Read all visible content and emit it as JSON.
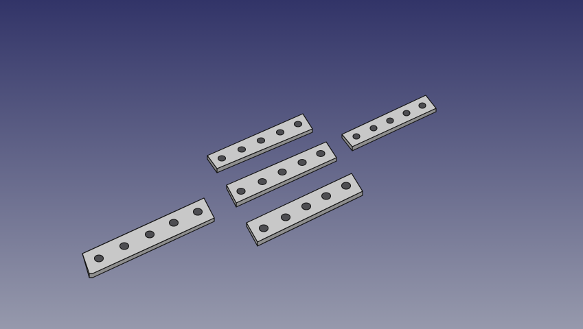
{
  "viewport": {
    "background_top_color": "#323468",
    "background_bottom_color": "#9699AC"
  },
  "materials": {
    "plate_top_color": "#C8C8C8",
    "plate_side_color": "#8E8E8E",
    "plate_edge_color": "#151515",
    "hole_color": "#4E4E52"
  },
  "parts": [
    {
      "name": "plate-large",
      "hole_count": 5
    },
    {
      "name": "plate-top-middle",
      "hole_count": 5
    },
    {
      "name": "plate-center",
      "hole_count": 5
    },
    {
      "name": "plate-lower-middle",
      "hole_count": 5
    },
    {
      "name": "plate-right",
      "hole_count": 5
    }
  ]
}
